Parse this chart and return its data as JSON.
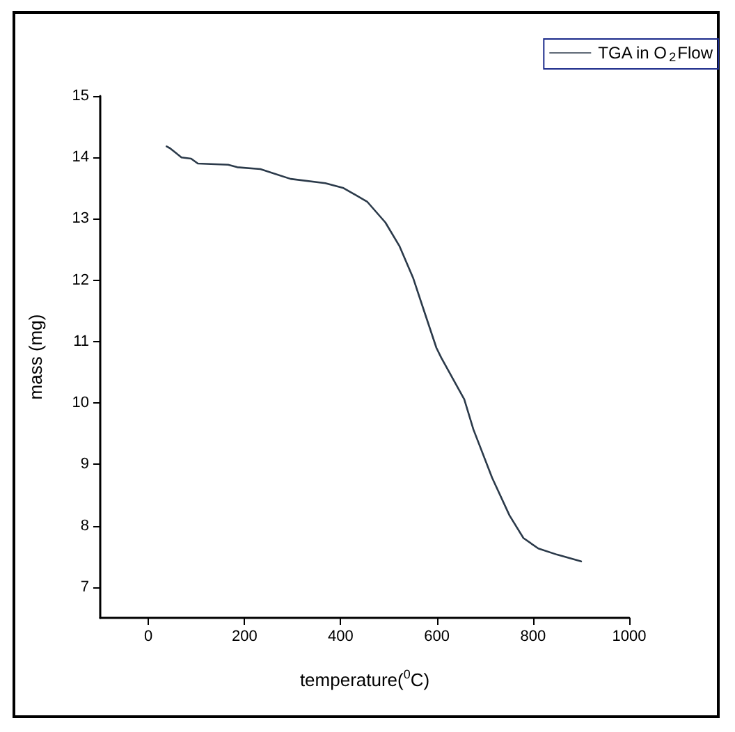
{
  "chart_data": {
    "type": "line",
    "xlabel": "temperature($^{0}$C)",
    "ylabel": "mass (mg)",
    "x": [
      38,
      45,
      69,
      89,
      103,
      166,
      185,
      233,
      296,
      368,
      406,
      455,
      493,
      522,
      551,
      570,
      599,
      609,
      657,
      676,
      715,
      751,
      780,
      811,
      850,
      900
    ],
    "series": [
      {
        "name": "TGA in O$_{2}$Flow",
        "color": "#2b3a4a",
        "values": [
          14.18,
          14.15,
          14.0,
          13.98,
          13.9,
          13.88,
          13.84,
          13.81,
          13.65,
          13.58,
          13.5,
          13.28,
          12.94,
          12.56,
          12.03,
          11.58,
          10.9,
          10.74,
          10.06,
          9.57,
          8.78,
          8.17,
          7.8,
          7.63,
          7.53,
          7.42
        ]
      }
    ],
    "xlim": [
      -100,
      1000
    ],
    "xticks": [
      0,
      200,
      400,
      600,
      800,
      1000
    ],
    "ylim": [
      6.5,
      15
    ],
    "yticks": [
      7,
      8,
      9,
      10,
      11,
      12,
      13,
      14,
      15
    ],
    "grid": false,
    "legend": "top right",
    "marker": "none",
    "line_style": "solid"
  }
}
